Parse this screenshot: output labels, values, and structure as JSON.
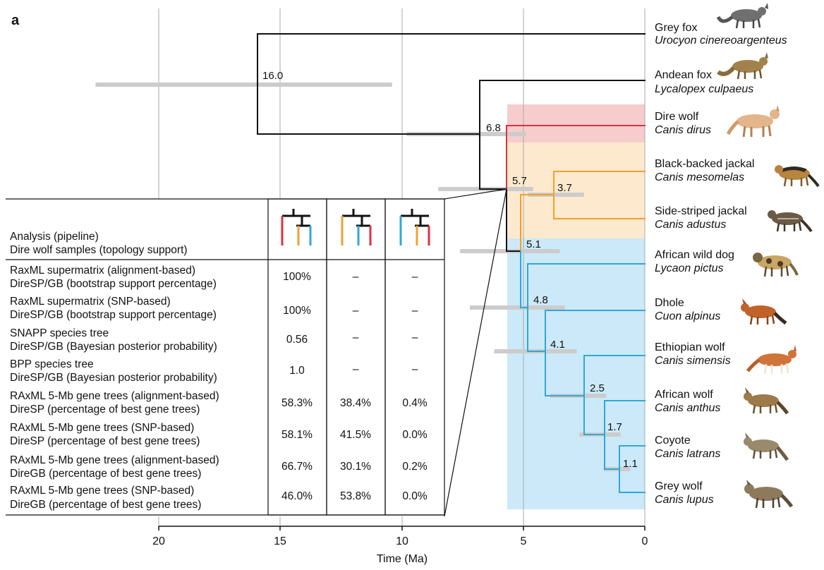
{
  "panel_label": "a",
  "axis": {
    "title": "Time (Ma)",
    "min": 0,
    "max": 20,
    "ticks": [
      20,
      15,
      10,
      5,
      0
    ],
    "tick_labels": [
      "20",
      "15",
      "10",
      "5",
      "0"
    ]
  },
  "colors": {
    "black": "#111111",
    "red": "#e03040",
    "orange": "#f0a030",
    "blue": "#30a8d8",
    "red_band": "#f6cccc",
    "orange_band": "#fde9cd",
    "blue_band": "#cbe9f8",
    "interval_bar": "#cccccc",
    "gridline": "#aaaaaa"
  },
  "taxa": [
    {
      "common": "Grey fox",
      "latin": "Urocyon cinereoargenteus",
      "icon": "grey-fox-icon"
    },
    {
      "common": "Andean fox",
      "latin": "Lycalopex culpaeus",
      "icon": "andean-fox-icon"
    },
    {
      "common": "Dire wolf",
      "latin": "Canis dirus",
      "icon": "dire-wolf-icon"
    },
    {
      "common": "Black-backed jackal",
      "latin": "Canis mesomelas",
      "icon": "black-backed-jackal-icon"
    },
    {
      "common": "Side-striped jackal",
      "latin": "Canis adustus",
      "icon": "side-striped-jackal-icon"
    },
    {
      "common": "African wild dog",
      "latin": "Lycaon pictus",
      "icon": "african-wild-dog-icon"
    },
    {
      "common": "Dhole",
      "latin": "Cuon alpinus",
      "icon": "dhole-icon"
    },
    {
      "common": "Ethiopian wolf",
      "latin": "Canis simensis",
      "icon": "ethiopian-wolf-icon"
    },
    {
      "common": "African wolf",
      "latin": "Canis anthus",
      "icon": "african-wolf-icon"
    },
    {
      "common": "Coyote",
      "latin": "Canis latrans",
      "icon": "coyote-icon"
    },
    {
      "common": "Grey wolf",
      "latin": "Canis lupus",
      "icon": "grey-wolf-icon"
    }
  ],
  "nodes": [
    {
      "label": "16.0",
      "age_ma": 16.0,
      "hpd_ma": [
        22.6,
        10.4
      ]
    },
    {
      "label": "6.8",
      "age_ma": 6.8,
      "hpd_ma": [
        9.8,
        4.9
      ]
    },
    {
      "label": "5.7",
      "age_ma": 5.7,
      "hpd_ma": [
        8.5,
        4.6
      ]
    },
    {
      "label": "3.7",
      "age_ma": 3.7,
      "hpd_ma": [
        4.8,
        2.5
      ]
    },
    {
      "label": "5.1",
      "age_ma": 5.1,
      "hpd_ma": [
        7.6,
        3.5
      ]
    },
    {
      "label": "4.8",
      "age_ma": 4.8,
      "hpd_ma": [
        7.2,
        3.3
      ]
    },
    {
      "label": "4.1",
      "age_ma": 4.1,
      "hpd_ma": [
        6.2,
        2.8
      ]
    },
    {
      "label": "2.5",
      "age_ma": 2.5,
      "hpd_ma": [
        3.9,
        1.6
      ]
    },
    {
      "label": "1.7",
      "age_ma": 1.7,
      "hpd_ma": [
        2.7,
        1.0
      ]
    },
    {
      "label": "1.1",
      "age_ma": 1.1,
      "hpd_ma": [
        1.7,
        0.6
      ]
    }
  ],
  "table": {
    "header_line1": "Analysis (pipeline)",
    "header_line2": "Dire wolf samples (topology support)",
    "topology_icons": [
      "topology-dire-wolf-sister-icon",
      "topology-jackal-sister-icon",
      "topology-wolf-clade-sister-icon"
    ],
    "rows": [
      {
        "line1": "RaxML supermatrix (alignment-based)",
        "line2": "DireSP/GB (bootstrap support percentage)",
        "values": [
          "100%",
          "–",
          "–"
        ]
      },
      {
        "line1": "RaxML supermatrix (SNP-based)",
        "line2": "DireSP/GB (bootstrap support percentage)",
        "values": [
          "100%",
          "–",
          "–"
        ]
      },
      {
        "line1": "SNAPP species tree",
        "line2": "DireSP/GB (Bayesian posterior probability)",
        "values": [
          "0.56",
          "–",
          "–"
        ]
      },
      {
        "line1": "BPP species tree",
        "line2": "DireSP/GB (Bayesian posterior probability)",
        "values": [
          "1.0",
          "–",
          "–"
        ]
      },
      {
        "line1": "RAxML 5-Mb gene trees (alignment-based)",
        "line2": "DireSP (percentage of best gene trees)",
        "values": [
          "58.3%",
          "38.4%",
          "0.4%"
        ]
      },
      {
        "line1": "RAxML 5-Mb gene trees (SNP-based)",
        "line2": "DireSP (percentage of best gene trees)",
        "values": [
          "58.1%",
          "41.5%",
          "0.0%"
        ]
      },
      {
        "line1": "RAxML 5-Mb gene trees (alignment-based)",
        "line2": "DireGB (percentage of best gene trees)",
        "values": [
          "66.7%",
          "30.1%",
          "0.2%"
        ]
      },
      {
        "line1": "RAxML 5-Mb gene trees (SNP-based)",
        "line2": "DireGB (percentage of best gene trees)",
        "values": [
          "46.0%",
          "53.8%",
          "0.0%"
        ]
      }
    ]
  }
}
